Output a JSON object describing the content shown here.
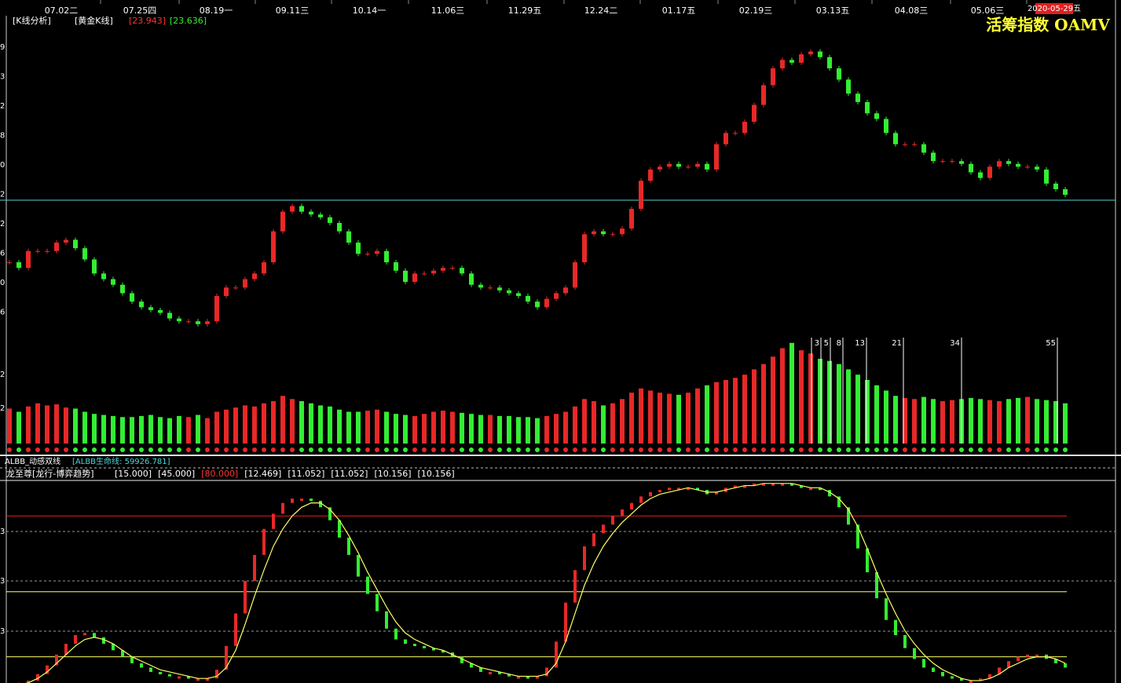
{
  "date_axis": [
    "07.02二",
    "07.25四",
    "08.19一",
    "09.11三",
    "10.14一",
    "11.06三",
    "11.29五",
    "12.24二",
    "01.17五",
    "02.19三",
    "03.13五",
    "04.08三",
    "05.06三"
  ],
  "current_date": "2020-05-29五",
  "main_panel": {
    "header": [
      "[K线分析]",
      "[黄金K线]",
      "[23.943]",
      "[23.636]"
    ],
    "title": "活筹指数 OAMV",
    "axis_labels": [
      "9",
      "3",
      "2",
      "8",
      "0",
      "2",
      "2",
      "6",
      "0",
      "6"
    ],
    "price": {
      "ylim": [
        0,
        100
      ],
      "close": [
        24,
        22,
        28,
        28,
        28,
        31,
        32,
        29,
        25,
        20,
        18,
        16,
        13,
        10,
        8,
        7,
        6,
        4,
        3,
        3,
        2,
        3,
        12,
        15,
        15,
        18,
        20,
        24,
        35,
        42,
        44,
        42,
        41,
        40,
        38,
        35,
        31,
        27,
        27,
        28,
        24,
        21,
        17,
        20,
        20,
        21,
        22,
        22,
        20,
        16,
        15,
        15,
        14,
        13,
        12,
        10,
        8,
        11,
        13,
        15,
        24,
        34,
        35,
        34,
        34,
        36,
        43,
        53,
        57,
        58,
        59,
        58,
        58,
        59,
        57,
        66,
        70,
        70,
        74,
        80,
        87,
        93,
        96,
        95,
        98,
        99,
        97,
        93,
        89,
        84,
        81,
        77,
        75,
        70,
        66,
        66,
        66,
        63,
        60,
        60,
        60,
        59,
        56,
        54,
        58,
        60,
        59,
        58,
        58,
        57,
        52,
        50,
        48
      ]
    },
    "volume": {
      "axis_labels": [
        "2",
        "2"
      ],
      "ylim": [
        0,
        100
      ],
      "values": [
        33,
        30,
        35,
        38,
        36,
        37,
        34,
        33,
        30,
        28,
        27,
        26,
        25,
        25,
        26,
        27,
        25,
        24,
        26,
        25,
        27,
        24,
        30,
        32,
        34,
        36,
        35,
        38,
        40,
        45,
        42,
        40,
        38,
        36,
        35,
        32,
        30,
        30,
        31,
        32,
        30,
        28,
        27,
        26,
        28,
        30,
        31,
        30,
        29,
        28,
        27,
        27,
        26,
        26,
        25,
        25,
        24,
        26,
        28,
        30,
        35,
        42,
        40,
        36,
        38,
        42,
        48,
        52,
        50,
        48,
        47,
        46,
        48,
        52,
        55,
        58,
        60,
        62,
        65,
        70,
        75,
        82,
        90,
        95,
        88,
        85,
        80,
        78,
        75,
        70,
        65,
        60,
        55,
        50,
        45,
        43,
        42,
        44,
        42,
        40,
        41,
        42,
        43,
        42,
        41,
        40,
        42,
        43,
        44,
        42,
        41,
        40,
        38
      ]
    },
    "fib_labels": [
      "3",
      "5",
      "8",
      "13",
      "21",
      "34",
      "55"
    ]
  },
  "indicator_panel": {
    "albb_header": [
      "ALBB_动感双线",
      "[ALBB生命线: 59926.781]"
    ],
    "header": "龙至尊[龙行-博弈趋势]",
    "params": [
      {
        "value": 15,
        "label": "[15.000]"
      },
      {
        "value": 45,
        "label": "[45.000]"
      },
      {
        "value": 80,
        "label": "[80.000]"
      },
      "[12.469]",
      "[11.052]",
      "[11.052]",
      "[10.156]",
      "[10.156]"
    ],
    "axis_labels": [
      "3",
      "3",
      "3"
    ],
    "ylim": [
      0,
      100
    ],
    "oscillator": [
      2,
      3,
      4,
      7,
      11,
      16,
      21,
      25,
      26,
      24,
      21,
      18,
      15,
      12,
      10,
      8,
      7,
      6,
      6,
      5,
      5,
      5,
      9,
      20,
      35,
      50,
      62,
      74,
      81,
      86,
      88,
      88,
      87,
      84,
      78,
      70,
      62,
      52,
      44,
      36,
      28,
      23,
      21,
      20,
      19,
      18,
      17,
      15,
      12,
      10,
      8,
      8,
      7,
      6,
      6,
      5,
      6,
      10,
      22,
      40,
      55,
      66,
      72,
      76,
      80,
      83,
      86,
      89,
      91,
      92,
      93,
      93,
      93,
      92,
      90,
      91,
      93,
      94,
      94,
      95,
      95,
      95,
      95,
      94,
      93,
      93,
      92,
      89,
      84,
      76,
      65,
      54,
      42,
      32,
      25,
      19,
      14,
      10,
      8,
      6,
      5,
      4,
      4,
      5,
      7,
      10,
      13,
      15,
      16,
      16,
      14,
      12,
      10
    ],
    "signal": [
      1,
      2,
      3,
      5,
      8,
      12,
      16,
      20,
      23,
      24,
      23,
      21,
      18,
      15,
      13,
      11,
      9,
      8,
      7,
      6,
      5,
      5,
      6,
      10,
      18,
      30,
      43,
      55,
      66,
      74,
      80,
      84,
      86,
      86,
      83,
      78,
      71,
      63,
      54,
      46,
      38,
      31,
      26,
      23,
      21,
      19,
      18,
      16,
      14,
      12,
      10,
      9,
      8,
      7,
      6,
      6,
      6,
      7,
      12,
      22,
      35,
      48,
      58,
      66,
      72,
      77,
      81,
      85,
      88,
      90,
      91,
      92,
      93,
      92,
      91,
      91,
      92,
      93,
      94,
      94,
      95,
      95,
      95,
      95,
      94,
      93,
      93,
      91,
      88,
      83,
      75,
      65,
      54,
      44,
      35,
      27,
      21,
      16,
      12,
      9,
      7,
      5,
      4,
      4,
      5,
      7,
      10,
      12,
      14,
      15,
      15,
      14,
      12
    ]
  }
}
